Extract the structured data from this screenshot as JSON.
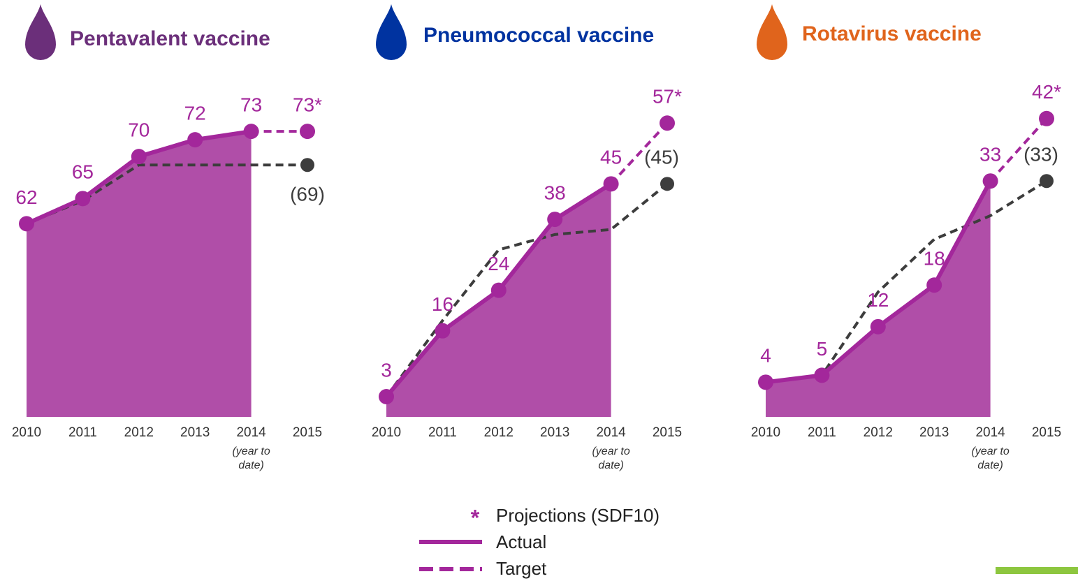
{
  "chart_data": [
    {
      "type": "line",
      "title": "Pentavalent vaccine",
      "title_color": "#6b2f7a",
      "categories": [
        "2010",
        "2011",
        "2012",
        "2013",
        "2014",
        "2015"
      ],
      "category_notes": [
        null,
        null,
        null,
        null,
        "(year to date)",
        null
      ],
      "ylim": [
        39,
        77
      ],
      "series": [
        {
          "color": "#a3279b",
          "values": [
            62,
            65,
            70,
            72,
            73,
            null
          ],
          "value_labels": [
            "62",
            "65",
            "70",
            "72",
            "73",
            null
          ]
        },
        {
          "color": "#a3279b",
          "values": [
            null,
            null,
            null,
            null,
            null,
            73
          ],
          "value_labels": [
            null,
            null,
            null,
            null,
            null,
            "73*"
          ]
        },
        {
          "color": "#3d3d3d",
          "values": [
            62,
            64.75,
            69,
            69,
            69,
            69
          ],
          "value_labels": [
            null,
            null,
            null,
            null,
            null,
            "(69)"
          ]
        }
      ]
    },
    {
      "type": "line",
      "title": "Pneumococcal vaccine",
      "title_color": "#0033a0",
      "categories": [
        "2010",
        "2011",
        "2012",
        "2013",
        "2014",
        "2015"
      ],
      "category_notes": [
        null,
        null,
        null,
        null,
        "(year to date)",
        null
      ],
      "ylim": [
        -1,
        62
      ],
      "series": [
        {
          "color": "#a3279b",
          "values": [
            3,
            16,
            24,
            38,
            45,
            null
          ],
          "value_labels": [
            "3",
            "16",
            "24",
            "38",
            "45",
            null
          ]
        },
        {
          "color": "#a3279b",
          "values": [
            null,
            null,
            null,
            null,
            null,
            57
          ],
          "value_labels": [
            null,
            null,
            null,
            null,
            null,
            "57*"
          ]
        },
        {
          "color": "#3d3d3d",
          "values": [
            3,
            18,
            32,
            35,
            36,
            45
          ],
          "value_labels": [
            null,
            null,
            null,
            null,
            null,
            "(45)"
          ]
        }
      ]
    },
    {
      "type": "line",
      "title": "Rotavirus vaccine",
      "title_color": "#e0641c",
      "categories": [
        "2010",
        "2011",
        "2012",
        "2013",
        "2014",
        "2015"
      ],
      "category_notes": [
        null,
        null,
        null,
        null,
        "(year to date)",
        null
      ],
      "ylim": [
        -1,
        45
      ],
      "series": [
        {
          "color": "#a3279b",
          "values": [
            4,
            5,
            12,
            18,
            33,
            null
          ],
          "value_labels": [
            "4",
            "5",
            "12",
            "18",
            "33",
            null
          ]
        },
        {
          "color": "#a3279b",
          "values": [
            null,
            null,
            null,
            null,
            null,
            42
          ],
          "value_labels": [
            null,
            null,
            null,
            null,
            null,
            "42*"
          ]
        },
        {
          "color": "#3d3d3d",
          "values": [
            4,
            5,
            17,
            24.6,
            28,
            33
          ],
          "value_labels": [
            null,
            null,
            null,
            null,
            null,
            "(33)"
          ]
        }
      ]
    }
  ],
  "legend": {
    "projection_marker": "*",
    "labels": [
      "Projections (SDF10)",
      "Actual",
      "Target"
    ],
    "color": "#a3279b"
  }
}
